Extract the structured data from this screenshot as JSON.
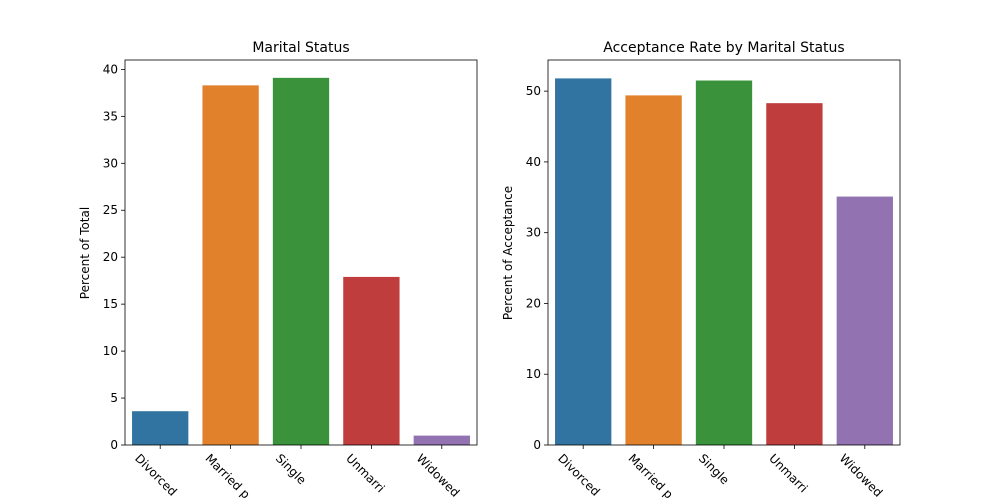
{
  "chart_data": [
    {
      "type": "bar",
      "title": "Marital Status",
      "xlabel": "",
      "ylabel": "Percent of Total",
      "categories": [
        "Divorced",
        "Married partner",
        "Single",
        "Unmarried partner",
        "Widowed"
      ],
      "tick_labels": [
        "Divorced",
        "Married p",
        "Single",
        "Unmarri",
        "Widowed"
      ],
      "values": [
        3.6,
        38.3,
        39.1,
        17.9,
        1.0
      ],
      "ylim": [
        0,
        41
      ],
      "yticks": [
        0,
        5,
        10,
        15,
        20,
        25,
        30,
        35,
        40
      ],
      "colors": [
        "#3274a1",
        "#e1812c",
        "#3a923a",
        "#c03d3e",
        "#9372b2"
      ],
      "grid": false,
      "legend": "none"
    },
    {
      "type": "bar",
      "title": "Acceptance Rate by Marital Status",
      "xlabel": "",
      "ylabel": "Percent of Acceptance",
      "categories": [
        "Divorced",
        "Married partner",
        "Single",
        "Unmarried partner",
        "Widowed"
      ],
      "tick_labels": [
        "Divorced",
        "Married p",
        "Single",
        "Unmarri",
        "Widowed"
      ],
      "values": [
        51.8,
        49.4,
        51.5,
        48.3,
        35.1
      ],
      "ylim": [
        0,
        54.4
      ],
      "yticks": [
        0,
        10,
        20,
        30,
        40,
        50
      ],
      "colors": [
        "#3274a1",
        "#e1812c",
        "#3a923a",
        "#c03d3e",
        "#9372b2"
      ],
      "grid": false,
      "legend": "none"
    }
  ]
}
